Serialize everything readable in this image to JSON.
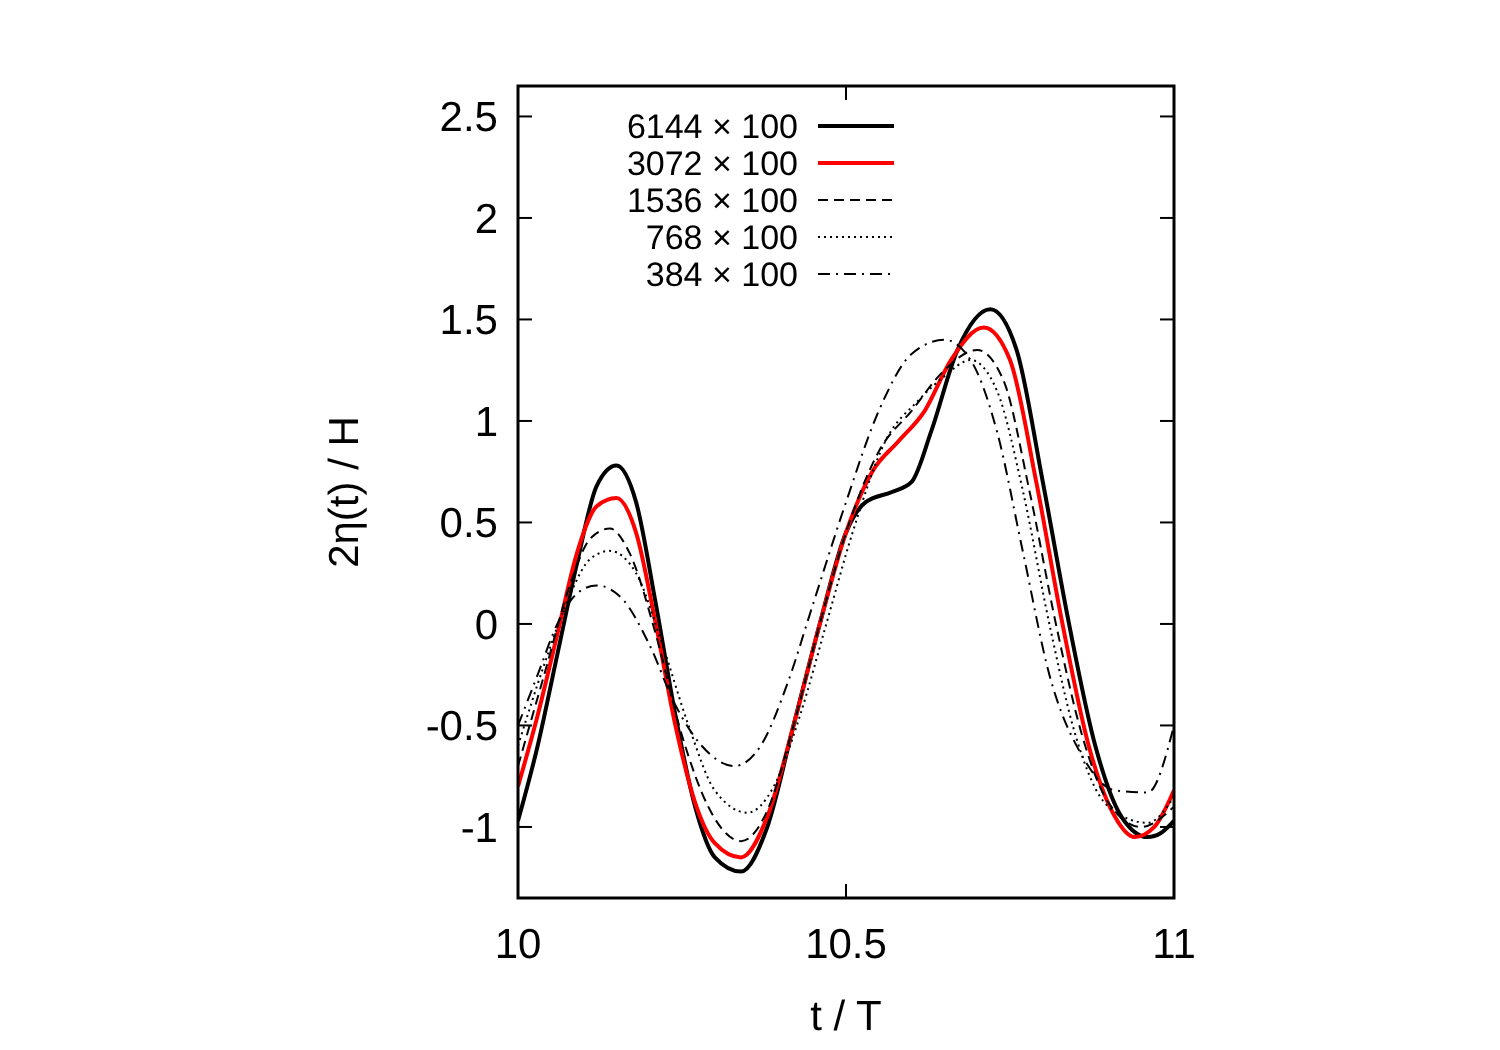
{
  "chart_data": {
    "type": "line",
    "xlabel": "t / T",
    "ylabel": "2η(t) / H",
    "xlim": [
      10,
      11
    ],
    "ylim": [
      -1.35,
      2.65
    ],
    "xticks": [
      10,
      10.5,
      11
    ],
    "yticks": [
      -1,
      -0.5,
      0,
      0.5,
      1,
      1.5,
      2,
      2.5
    ],
    "grid": false,
    "legend": "top left",
    "series": [
      {
        "name": "6144 × 100",
        "color": "#000000",
        "line_style": "solid",
        "x": [
          10.0,
          10.03,
          10.06,
          10.09,
          10.12,
          10.15,
          10.18,
          10.21,
          10.24,
          10.27,
          10.3,
          10.34,
          10.38,
          10.42,
          10.46,
          10.5,
          10.53,
          10.57,
          10.6,
          10.63,
          10.67,
          10.72,
          10.76,
          10.8,
          10.84,
          10.88,
          10.92,
          10.96,
          10.98,
          11.0
        ],
        "values": [
          -0.97,
          -0.6,
          -0.15,
          0.3,
          0.68,
          0.78,
          0.6,
          0.1,
          -0.45,
          -0.9,
          -1.15,
          -1.22,
          -1.0,
          -0.5,
          0.0,
          0.45,
          0.6,
          0.65,
          0.7,
          0.95,
          1.35,
          1.55,
          1.35,
          0.7,
          0.0,
          -0.6,
          -0.95,
          -1.05,
          -1.03,
          -0.97
        ]
      },
      {
        "name": "3072 × 100",
        "color": "#ff0000",
        "line_style": "solid",
        "x": [
          10.0,
          10.03,
          10.06,
          10.09,
          10.12,
          10.15,
          10.18,
          10.21,
          10.24,
          10.27,
          10.3,
          10.34,
          10.38,
          10.42,
          10.46,
          10.5,
          10.54,
          10.58,
          10.62,
          10.66,
          10.71,
          10.75,
          10.79,
          10.83,
          10.87,
          10.91,
          10.94,
          10.97,
          11.0
        ],
        "values": [
          -0.8,
          -0.45,
          -0.05,
          0.35,
          0.58,
          0.62,
          0.45,
          0.0,
          -0.5,
          -0.88,
          -1.08,
          -1.15,
          -0.95,
          -0.5,
          0.0,
          0.45,
          0.75,
          0.9,
          1.05,
          1.3,
          1.46,
          1.3,
          0.7,
          0.0,
          -0.6,
          -0.95,
          -1.05,
          -1.0,
          -0.82
        ]
      },
      {
        "name": "1536 × 100",
        "color": "#000000",
        "line_style": "dashed",
        "x": [
          10.0,
          10.04,
          10.08,
          10.11,
          10.14,
          10.17,
          10.21,
          10.25,
          10.29,
          10.34,
          10.38,
          10.42,
          10.46,
          10.5,
          10.55,
          10.6,
          10.65,
          10.7,
          10.74,
          10.78,
          10.82,
          10.86,
          10.9,
          10.95,
          11.0
        ],
        "values": [
          -0.7,
          -0.25,
          0.2,
          0.42,
          0.47,
          0.35,
          -0.05,
          -0.55,
          -0.9,
          -1.07,
          -0.92,
          -0.5,
          0.0,
          0.45,
          0.85,
          1.05,
          1.25,
          1.35,
          1.2,
          0.65,
          0.0,
          -0.55,
          -0.88,
          -1.0,
          -0.9
        ]
      },
      {
        "name": "768 × 100",
        "color": "#000000",
        "line_style": "dotted",
        "x": [
          10.0,
          10.04,
          10.08,
          10.11,
          10.14,
          10.18,
          10.22,
          10.26,
          10.3,
          10.35,
          10.39,
          10.43,
          10.47,
          10.51,
          10.56,
          10.61,
          10.65,
          10.69,
          10.73,
          10.77,
          10.81,
          10.85,
          10.9,
          10.96,
          11.0
        ],
        "values": [
          -0.6,
          -0.2,
          0.15,
          0.32,
          0.36,
          0.25,
          -0.1,
          -0.5,
          -0.82,
          -0.93,
          -0.8,
          -0.45,
          0.0,
          0.45,
          0.9,
          1.1,
          1.22,
          1.3,
          1.15,
          0.65,
          0.0,
          -0.55,
          -0.9,
          -0.98,
          -0.85
        ]
      },
      {
        "name": "384 × 100",
        "color": "#000000",
        "line_style": "dashdot",
        "x": [
          10.0,
          10.03,
          10.06,
          10.09,
          10.12,
          10.16,
          10.2,
          10.24,
          10.28,
          10.33,
          10.37,
          10.41,
          10.45,
          10.5,
          10.55,
          10.6,
          10.65,
          10.69,
          10.73,
          10.77,
          10.81,
          10.86,
          10.91,
          10.96,
          11.0
        ],
        "values": [
          -0.5,
          -0.25,
          0.0,
          0.15,
          0.19,
          0.12,
          -0.1,
          -0.4,
          -0.6,
          -0.7,
          -0.6,
          -0.3,
          0.1,
          0.6,
          1.05,
          1.33,
          1.4,
          1.3,
          0.95,
          0.35,
          -0.25,
          -0.65,
          -0.82,
          -0.83,
          -0.5
        ]
      }
    ]
  }
}
